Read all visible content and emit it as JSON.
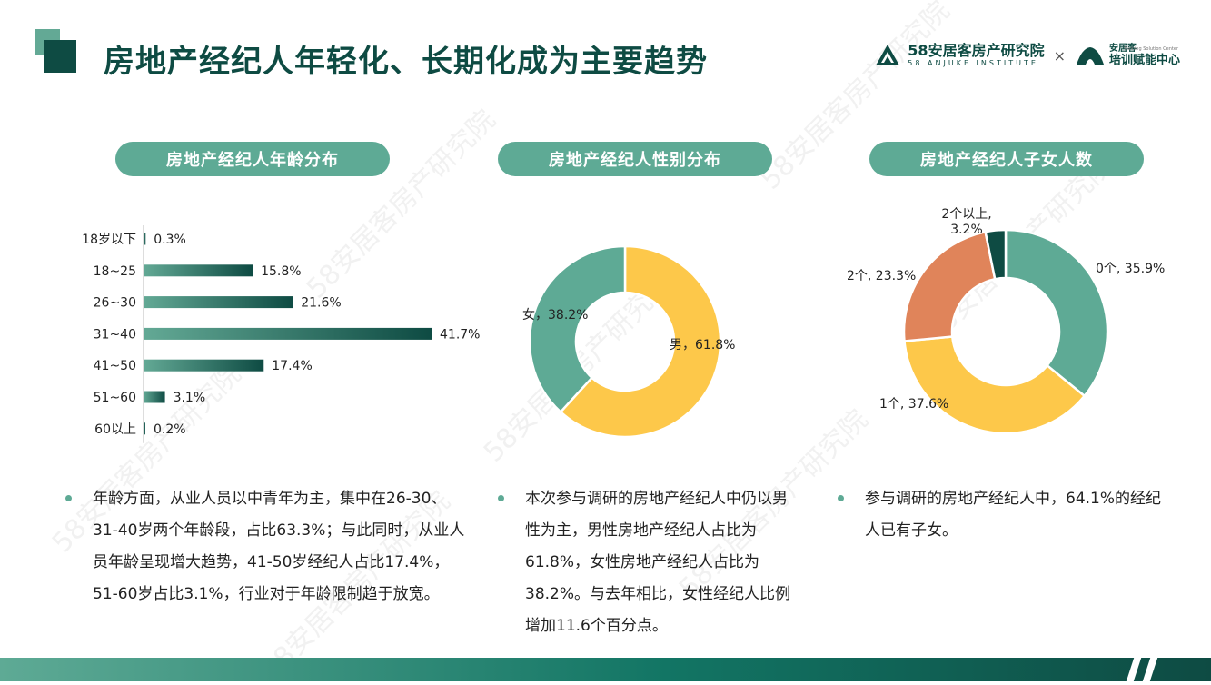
{
  "title": "房地产经纪人年轻化、长期化成为主要趋势",
  "logo": {
    "name": "58安居客房产研究院",
    "sub": "58 ANJUKE INSTITUTE",
    "separator": "×",
    "partner_top": "安居客",
    "partner_bottom": "培训赋能中心",
    "partner_en": "Training Solution Center"
  },
  "watermark": "58安居客房产研究院",
  "panels": [
    {
      "title": "房地产经纪人年龄分布"
    },
    {
      "title": "房地产经纪人性别分布"
    },
    {
      "title": "房地产经纪人子女人数"
    }
  ],
  "chart_data": [
    {
      "type": "bar",
      "orientation": "horizontal",
      "title": "房地产经纪人年龄分布",
      "categories": [
        "18岁以下",
        "18~25",
        "26~30",
        "31~40",
        "41~50",
        "51~60",
        "60以上"
      ],
      "values": [
        0.3,
        15.8,
        21.6,
        41.7,
        17.4,
        3.1,
        0.2
      ],
      "value_labels": [
        "0.3%",
        "15.8%",
        "21.6%",
        "41.7%",
        "17.4%",
        "3.1%",
        "0.2%"
      ],
      "unit": "%",
      "grid": false,
      "colors": {
        "start": "#63a995",
        "end": "#0e4b43"
      }
    },
    {
      "type": "pie",
      "donut": true,
      "title": "房地产经纪人性别分布",
      "slices": [
        {
          "label": "男",
          "value": 61.8,
          "text": "男，61.8%",
          "color": "#fdc84a"
        },
        {
          "label": "女",
          "value": 38.2,
          "text": "女，38.2%",
          "color": "#5eaa95"
        }
      ]
    },
    {
      "type": "pie",
      "donut": true,
      "title": "房地产经纪人子女人数",
      "slices": [
        {
          "label": "0个",
          "value": 35.9,
          "text": "0个, 35.9%",
          "color": "#5eaa95"
        },
        {
          "label": "1个",
          "value": 37.6,
          "text": "1个, 37.6%",
          "color": "#fdc84a"
        },
        {
          "label": "2个",
          "value": 23.3,
          "text": "2个, 23.3%",
          "color": "#e0845a"
        },
        {
          "label": "2个以上",
          "value": 3.2,
          "text": "2个以上,|3.2%",
          "color": "#0e4b43"
        }
      ]
    }
  ],
  "bullets": [
    "年龄方面，从业人员以中青年为主，集中在26-30、31-40岁两个年龄段，占比63.3%；与此同时，从业人员年龄呈现增大趋势，41-50岁经纪人占比17.4%，51-60岁占比3.1%，行业对于年龄限制趋于放宽。",
    "本次参与调研的房地产经纪人中仍以男性为主，男性房地产经纪人占比为61.8%，女性房地产经纪人占比为38.2%。与去年相比，女性经纪人比例增加11.6个百分点。",
    "参与调研的房地产经纪人中，64.1%的经纪人已有子女。"
  ]
}
